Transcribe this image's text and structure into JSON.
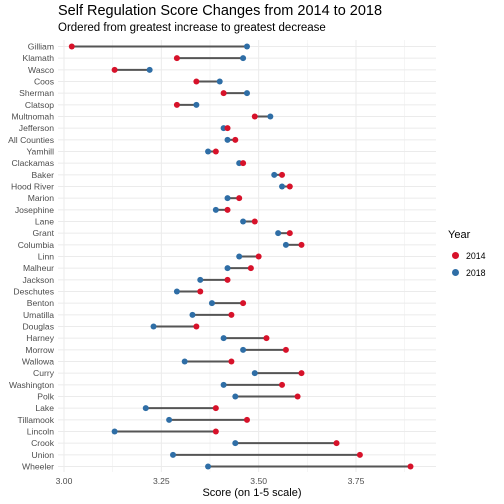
{
  "colors": {
    "y2014": "#d7122a",
    "y2018": "#2f6ea6",
    "segment": "#555555",
    "grid": "#ebebeb"
  },
  "chart_data": {
    "type": "dumbbell",
    "title": "Self Regulation Score Changes from 2014 to 2018",
    "subtitle": "Ordered from greatest increase to greatest decrease",
    "xlabel": "Score (on 1-5 scale)",
    "ylabel": "",
    "xlim": [
      3.0,
      3.9
    ],
    "x_ticks": [
      "3.00",
      "3.25",
      "3.50",
      "3.75"
    ],
    "x_tick_values": [
      3.0,
      3.25,
      3.5,
      3.75
    ],
    "legend": {
      "title": "Year",
      "placement": "right",
      "entries": [
        "2014",
        "2018"
      ]
    },
    "grid": true,
    "categories": [
      "Gilliam",
      "Klamath",
      "Wasco",
      "Coos",
      "Sherman",
      "Clatsop",
      "Multnomah",
      "Jefferson",
      "All Counties",
      "Yamhill",
      "Clackamas",
      "Baker",
      "Hood River",
      "Marion",
      "Josephine",
      "Lane",
      "Grant",
      "Columbia",
      "Linn",
      "Malheur",
      "Jackson",
      "Deschutes",
      "Benton",
      "Umatilla",
      "Douglas",
      "Harney",
      "Morrow",
      "Wallowa",
      "Curry",
      "Washington",
      "Polk",
      "Lake",
      "Tillamook",
      "Lincoln",
      "Crook",
      "Union",
      "Wheeler"
    ],
    "series": [
      {
        "name": "2014",
        "values": [
          3.02,
          3.29,
          3.13,
          3.34,
          3.41,
          3.29,
          3.49,
          3.42,
          3.44,
          3.39,
          3.46,
          3.56,
          3.58,
          3.45,
          3.42,
          3.49,
          3.58,
          3.61,
          3.5,
          3.48,
          3.42,
          3.35,
          3.46,
          3.43,
          3.34,
          3.52,
          3.57,
          3.43,
          3.61,
          3.56,
          3.6,
          3.39,
          3.47,
          3.39,
          3.7,
          3.76,
          3.89
        ]
      },
      {
        "name": "2018",
        "values": [
          3.47,
          3.46,
          3.22,
          3.4,
          3.47,
          3.34,
          3.53,
          3.41,
          3.42,
          3.37,
          3.45,
          3.54,
          3.56,
          3.42,
          3.39,
          3.46,
          3.55,
          3.57,
          3.45,
          3.42,
          3.35,
          3.29,
          3.38,
          3.33,
          3.23,
          3.41,
          3.46,
          3.31,
          3.49,
          3.41,
          3.44,
          3.21,
          3.27,
          3.13,
          3.44,
          3.28,
          3.37
        ]
      }
    ]
  }
}
